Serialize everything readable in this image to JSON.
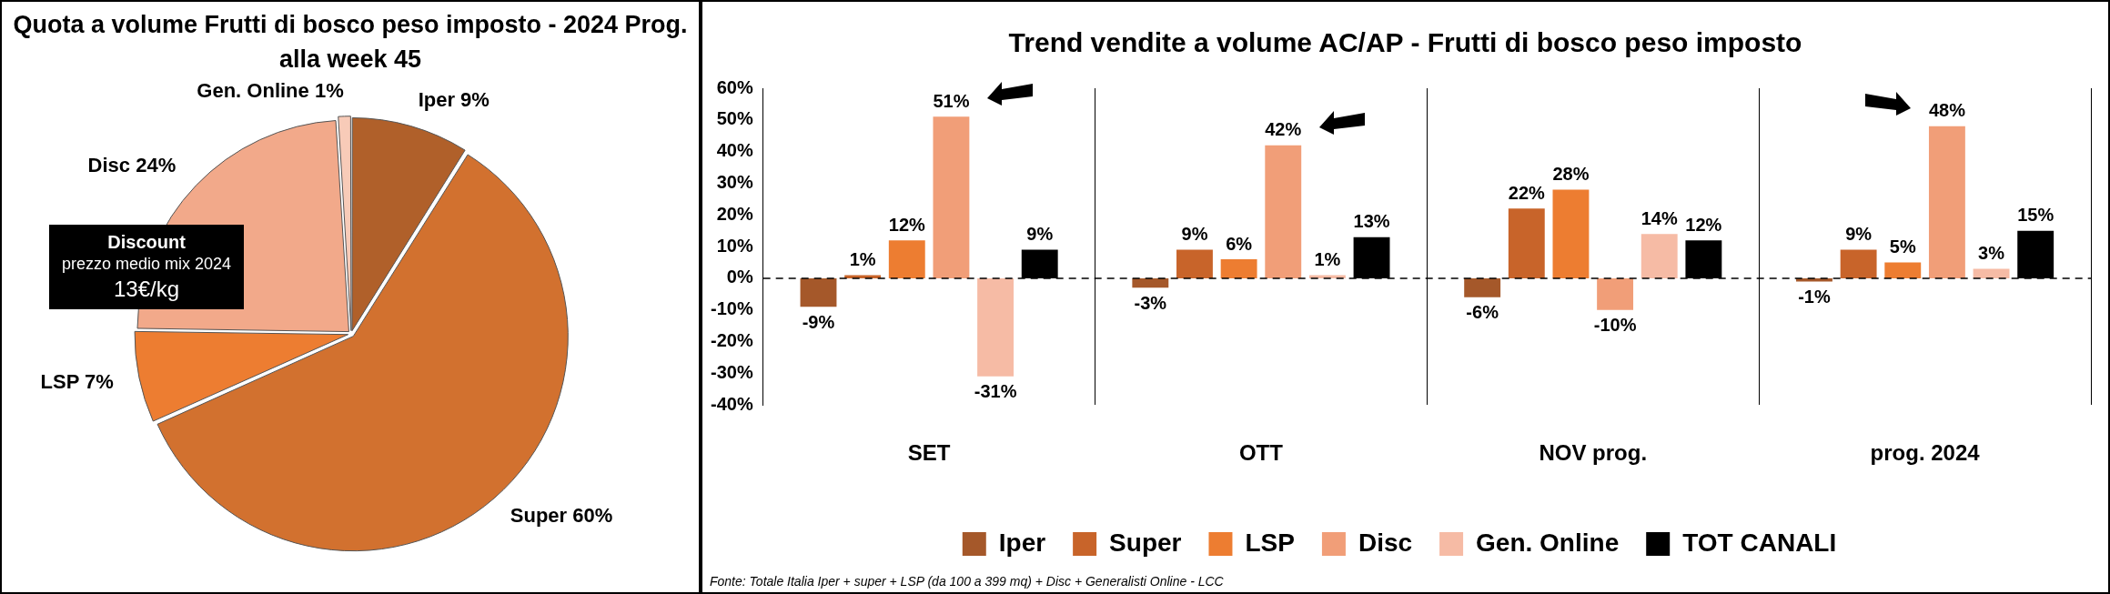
{
  "chart_data": [
    {
      "type": "pie",
      "title": "Quota a volume Frutti di bosco peso imposto - 2024 Prog. alla week 45",
      "categories": [
        "Iper",
        "Super",
        "LSP",
        "Disc",
        "Gen. Online"
      ],
      "values": [
        9,
        60,
        7,
        24,
        1
      ],
      "value_labels": [
        "9%",
        "60%",
        "7%",
        "24%",
        "1%"
      ],
      "colors": [
        "#b0602a",
        "#d2712f",
        "#ed7d31",
        "#f2a98a",
        "#f8cbb8"
      ],
      "annotations": [
        "Discount",
        "prezzo medio mix 2024",
        "13€/kg"
      ]
    },
    {
      "type": "bar",
      "title": "Trend vendite a volume AC/AP - Frutti di bosco peso imposto",
      "categories": [
        "SET",
        "OTT",
        "NOV prog.",
        "prog. 2024"
      ],
      "series": [
        {
          "name": "Iper",
          "color": "#a5582a",
          "values": [
            -9,
            -3,
            -6,
            -1
          ],
          "value_labels": [
            "-9%",
            "-3%",
            "-6%",
            "-1%"
          ]
        },
        {
          "name": "Super",
          "color": "#c8642a",
          "values": [
            1,
            9,
            22,
            9
          ],
          "value_labels": [
            "1%",
            "9%",
            "22%",
            "9%"
          ]
        },
        {
          "name": "LSP",
          "color": "#ed7d31",
          "values": [
            12,
            6,
            28,
            5
          ],
          "value_labels": [
            "12%",
            "6%",
            "28%",
            "5%"
          ]
        },
        {
          "name": "Disc",
          "color": "#f19e78",
          "values": [
            51,
            42,
            -10,
            48
          ],
          "value_labels": [
            "51%",
            "42%",
            "-10%",
            "48%"
          ]
        },
        {
          "name": "Gen. Online",
          "color": "#f6bba5",
          "values": [
            -31,
            1,
            14,
            3
          ],
          "value_labels": [
            "-31%",
            "1%",
            "14%",
            "3%"
          ]
        },
        {
          "name": "TOT CANALI",
          "color": "#000000",
          "values": [
            9,
            13,
            12,
            15
          ],
          "value_labels": [
            "9%",
            "13%",
            "12%",
            "15%"
          ]
        }
      ],
      "ylim": [
        -40,
        60
      ],
      "yticks": [
        {
          "value": -40,
          "label": "-40%"
        },
        {
          "value": -30,
          "label": "-30%"
        },
        {
          "value": -20,
          "label": "-20%"
        },
        {
          "value": -10,
          "label": "-10%"
        },
        {
          "value": 0,
          "label": "0%"
        },
        {
          "value": 10,
          "label": "10%"
        },
        {
          "value": 20,
          "label": "20%"
        },
        {
          "value": 30,
          "label": "30%"
        },
        {
          "value": 40,
          "label": "40%"
        },
        {
          "value": 50,
          "label": "50%"
        },
        {
          "value": 60,
          "label": "60%"
        }
      ],
      "grid": "x",
      "legend": "bottom",
      "ref_lines": [
        {
          "axis": "y",
          "value": 0,
          "line_style": "dashed",
          "color": "#000000"
        }
      ],
      "annotations": [
        "Fonte: Totale Italia Iper + super + LSP (da 100 a 399 mq) + Disc + Generalisti Online - LCC"
      ]
    }
  ]
}
